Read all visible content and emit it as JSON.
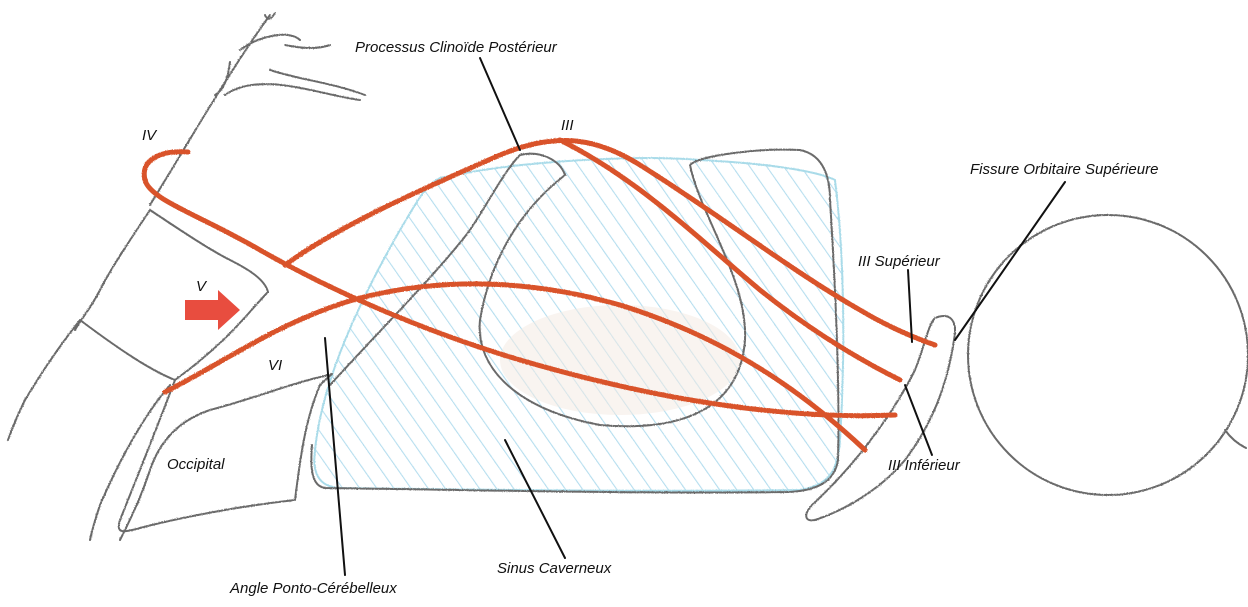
{
  "labels": {
    "processus_clinoide": "Processus Clinoïde Postérieur",
    "fissure_orbitaire": "Fissure Orbitaire Supérieure",
    "nerf_iii": "III",
    "nerf_iv": "IV",
    "nerf_v": "V",
    "nerf_vi": "VI",
    "iii_superieur": "III Supérieur",
    "iii_inferieur": "III Inférieur",
    "occipital": "Occipital",
    "sinus_caverneux": "Sinus Caverneux",
    "angle_ponto": "Angle Ponto-Cérébelleux"
  },
  "colors": {
    "nerve": "#d9532b",
    "nerve_light": "#e8784f",
    "bone": "#5a5a5a",
    "bone_light": "#8a8a8a",
    "sinus_hatch": "#9fd3ea",
    "sinus_fill": "#f5ece4",
    "arrow": "#e53a2a"
  }
}
